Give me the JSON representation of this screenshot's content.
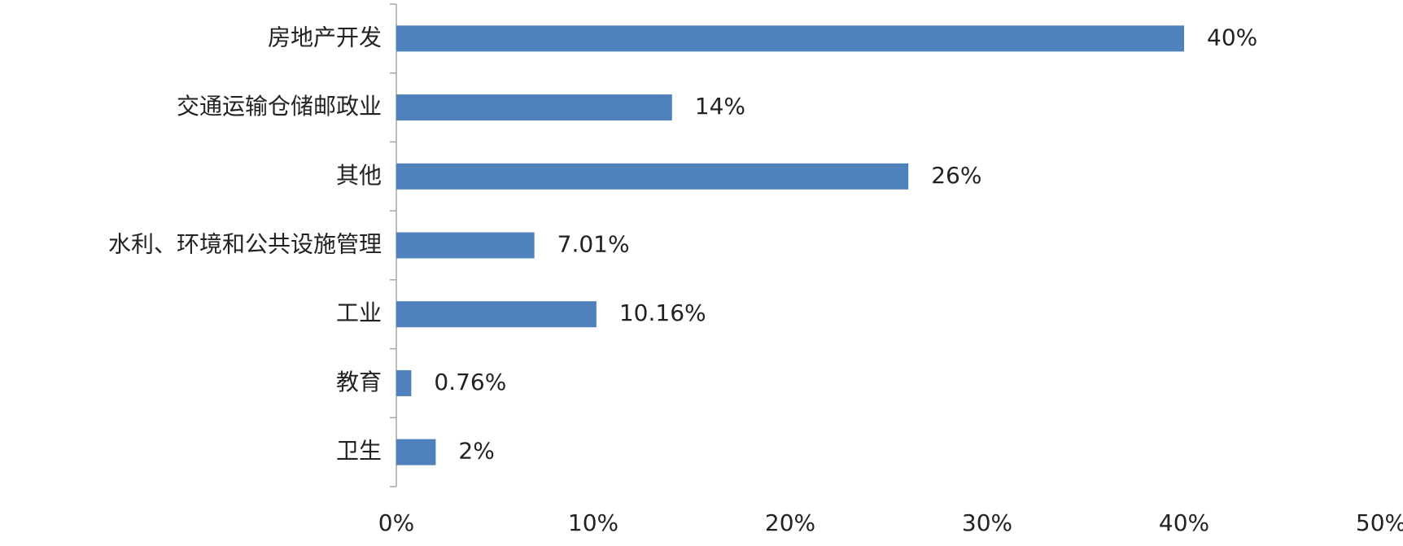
{
  "chart_data": {
    "type": "barh",
    "categories": [
      "房地产开发",
      "交通运输仓储邮政业",
      "其他",
      "水利、环境和公共设施管理",
      "工业",
      "教育",
      "卫生"
    ],
    "values": [
      40,
      14,
      26,
      7.01,
      10.16,
      0.76,
      2
    ],
    "value_labels": [
      "40%",
      "14%",
      "26%",
      "7.01%",
      "10.16%",
      "0.76%",
      "2%"
    ],
    "color": "#4f81bd",
    "xlim": [
      0,
      50
    ],
    "xticks": [
      {
        "value": 0,
        "label": "0%"
      },
      {
        "value": 10,
        "label": "10%"
      },
      {
        "value": 20,
        "label": "20%"
      },
      {
        "value": 30,
        "label": "30%"
      },
      {
        "value": 40,
        "label": "40%"
      },
      {
        "value": 50,
        "label": "50%"
      }
    ]
  }
}
